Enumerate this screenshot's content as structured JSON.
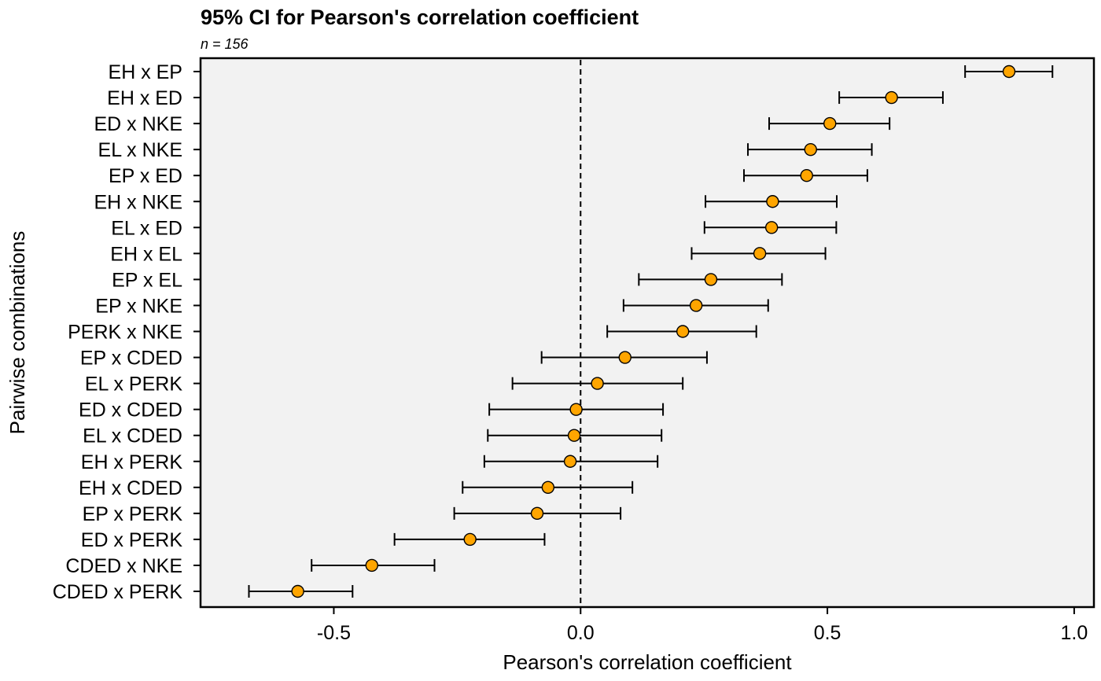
{
  "chart_data": {
    "type": "scatter",
    "title": "95% CI for Pearson's correlation coefficient",
    "subtitle": "n =  156",
    "xlabel": "Pearson's correlation coefficient",
    "ylabel": "Pairwise combinations",
    "xlim": [
      -0.77,
      1.04
    ],
    "xticks": [
      -0.5,
      0.0,
      0.5,
      1.0
    ],
    "xtick_labels": [
      "-0.5",
      "0.0",
      "0.5",
      "1.0"
    ],
    "reference_line": 0.0,
    "grid": false,
    "legend": "none",
    "categories": [
      "EH x EP",
      "EH x ED",
      "ED x NKE",
      "EL x NKE",
      "EP x ED",
      "EH x NKE",
      "EL x ED",
      "EH x EL",
      "EP x EL",
      "EP x NKE",
      "PERK x NKE",
      "EP x CDED",
      "EL x PERK",
      "ED x CDED",
      "EL x CDED",
      "EH x PERK",
      "EH x CDED",
      "EP x PERK",
      "ED x PERK",
      "CDED x NKE",
      "CDED x PERK"
    ],
    "estimates": [
      0.868,
      0.63,
      0.505,
      0.466,
      0.458,
      0.389,
      0.387,
      0.363,
      0.264,
      0.234,
      0.207,
      0.09,
      0.034,
      -0.009,
      -0.013,
      -0.021,
      -0.066,
      -0.088,
      -0.224,
      -0.423,
      -0.573
    ],
    "lower": [
      0.779,
      0.524,
      0.382,
      0.339,
      0.331,
      0.253,
      0.251,
      0.225,
      0.118,
      0.087,
      0.054,
      -0.079,
      -0.138,
      -0.185,
      -0.188,
      -0.195,
      -0.239,
      -0.256,
      -0.377,
      -0.545,
      -0.672
    ],
    "upper": [
      0.956,
      0.734,
      0.626,
      0.59,
      0.581,
      0.519,
      0.518,
      0.496,
      0.408,
      0.38,
      0.356,
      0.256,
      0.207,
      0.167,
      0.164,
      0.156,
      0.105,
      0.081,
      -0.073,
      -0.296,
      -0.462
    ],
    "colors": {
      "point_fill": "#FFA500",
      "point_stroke": "#000000",
      "panel": "#F2F2F2",
      "line": "#000000"
    }
  }
}
